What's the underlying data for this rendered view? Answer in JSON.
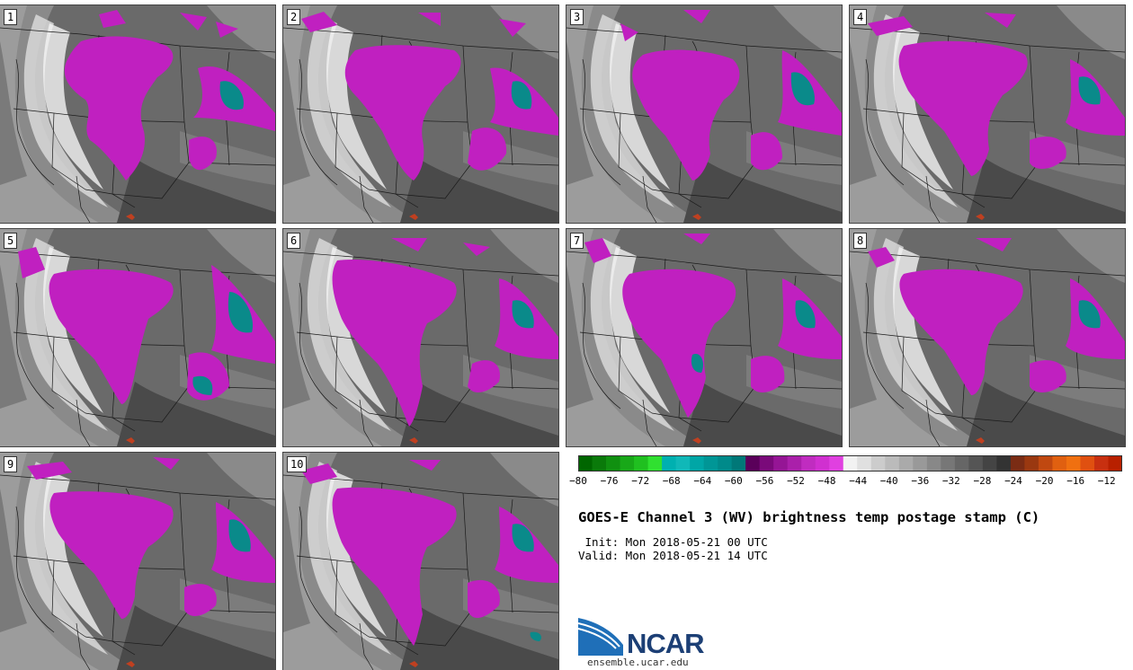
{
  "panels": [
    {
      "label": "1"
    },
    {
      "label": "2"
    },
    {
      "label": "3"
    },
    {
      "label": "4"
    },
    {
      "label": "5"
    },
    {
      "label": "6"
    },
    {
      "label": "7"
    },
    {
      "label": "8"
    },
    {
      "label": "9"
    },
    {
      "label": "10"
    }
  ],
  "colorbar": {
    "ticks": [
      "−80",
      "−76",
      "−72",
      "−68",
      "−64",
      "−60",
      "−56",
      "−52",
      "−48",
      "−44",
      "−40",
      "−36",
      "−32",
      "−28",
      "−24",
      "−20",
      "−16",
      "−12"
    ],
    "min": -80,
    "max": -10,
    "step": 2,
    "colors": [
      "#006600",
      "#0a7a0a",
      "#109010",
      "#18a818",
      "#20c020",
      "#30e030",
      "#00b0b0",
      "#10b8b8",
      "#00a6a6",
      "#009696",
      "#008a8a",
      "#007878",
      "#5a005a",
      "#7a0a7a",
      "#951595",
      "#aa20aa",
      "#c02cc0",
      "#d030d0",
      "#e040e0",
      "#f2f2f2",
      "#e0e0e0",
      "#cccccc",
      "#bbbbbb",
      "#aaaaaa",
      "#999999",
      "#888888",
      "#777777",
      "#666666",
      "#555555",
      "#444444",
      "#333333",
      "#7a2c14",
      "#9a3810",
      "#c04810",
      "#e06010",
      "#f07010",
      "#e05010",
      "#c83010",
      "#b82000"
    ]
  },
  "title": "GOES-E Channel 3 (WV) brightness temp postage stamp (C)",
  "init_line": " Init: Mon 2018-05-21 00 UTC",
  "valid_line": "Valid: Mon 2018-05-21 14 UTC",
  "logo_text": "NCAR",
  "site": "ensemble.ucar.edu"
}
